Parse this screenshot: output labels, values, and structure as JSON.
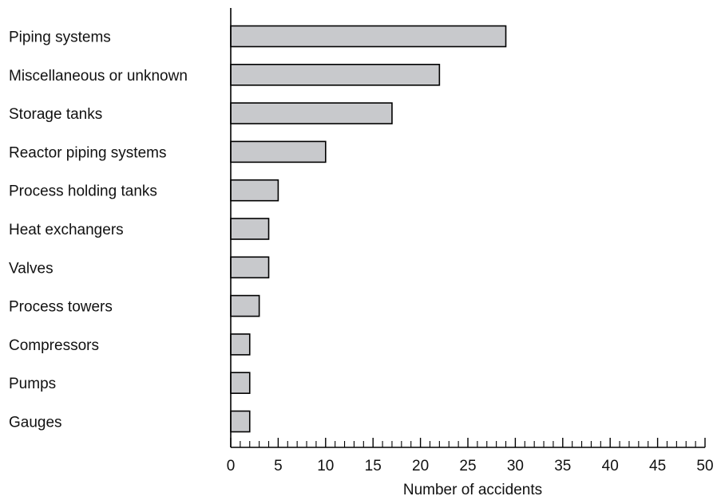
{
  "chart_data": {
    "type": "bar",
    "orientation": "horizontal",
    "categories": [
      "Piping systems",
      "Miscellaneous or unknown",
      "Storage tanks",
      "Reactor piping systems",
      "Process holding tanks",
      "Heat exchangers",
      "Valves",
      "Process towers",
      "Compressors",
      "Pumps",
      "Gauges"
    ],
    "values": [
      29,
      22,
      17,
      10,
      5,
      4,
      4,
      3,
      2,
      2,
      2
    ],
    "xlabel": "Number of accidents",
    "ylabel": "",
    "xlim": [
      0,
      50
    ],
    "xticks": [
      "0",
      "5",
      "10",
      "15",
      "20",
      "25",
      "30",
      "35",
      "40",
      "45",
      "50"
    ],
    "minor_tick_step": 1,
    "grid": false,
    "legend": "none",
    "bar_fill": "#c8c9cc",
    "bar_stroke": "#000000"
  }
}
